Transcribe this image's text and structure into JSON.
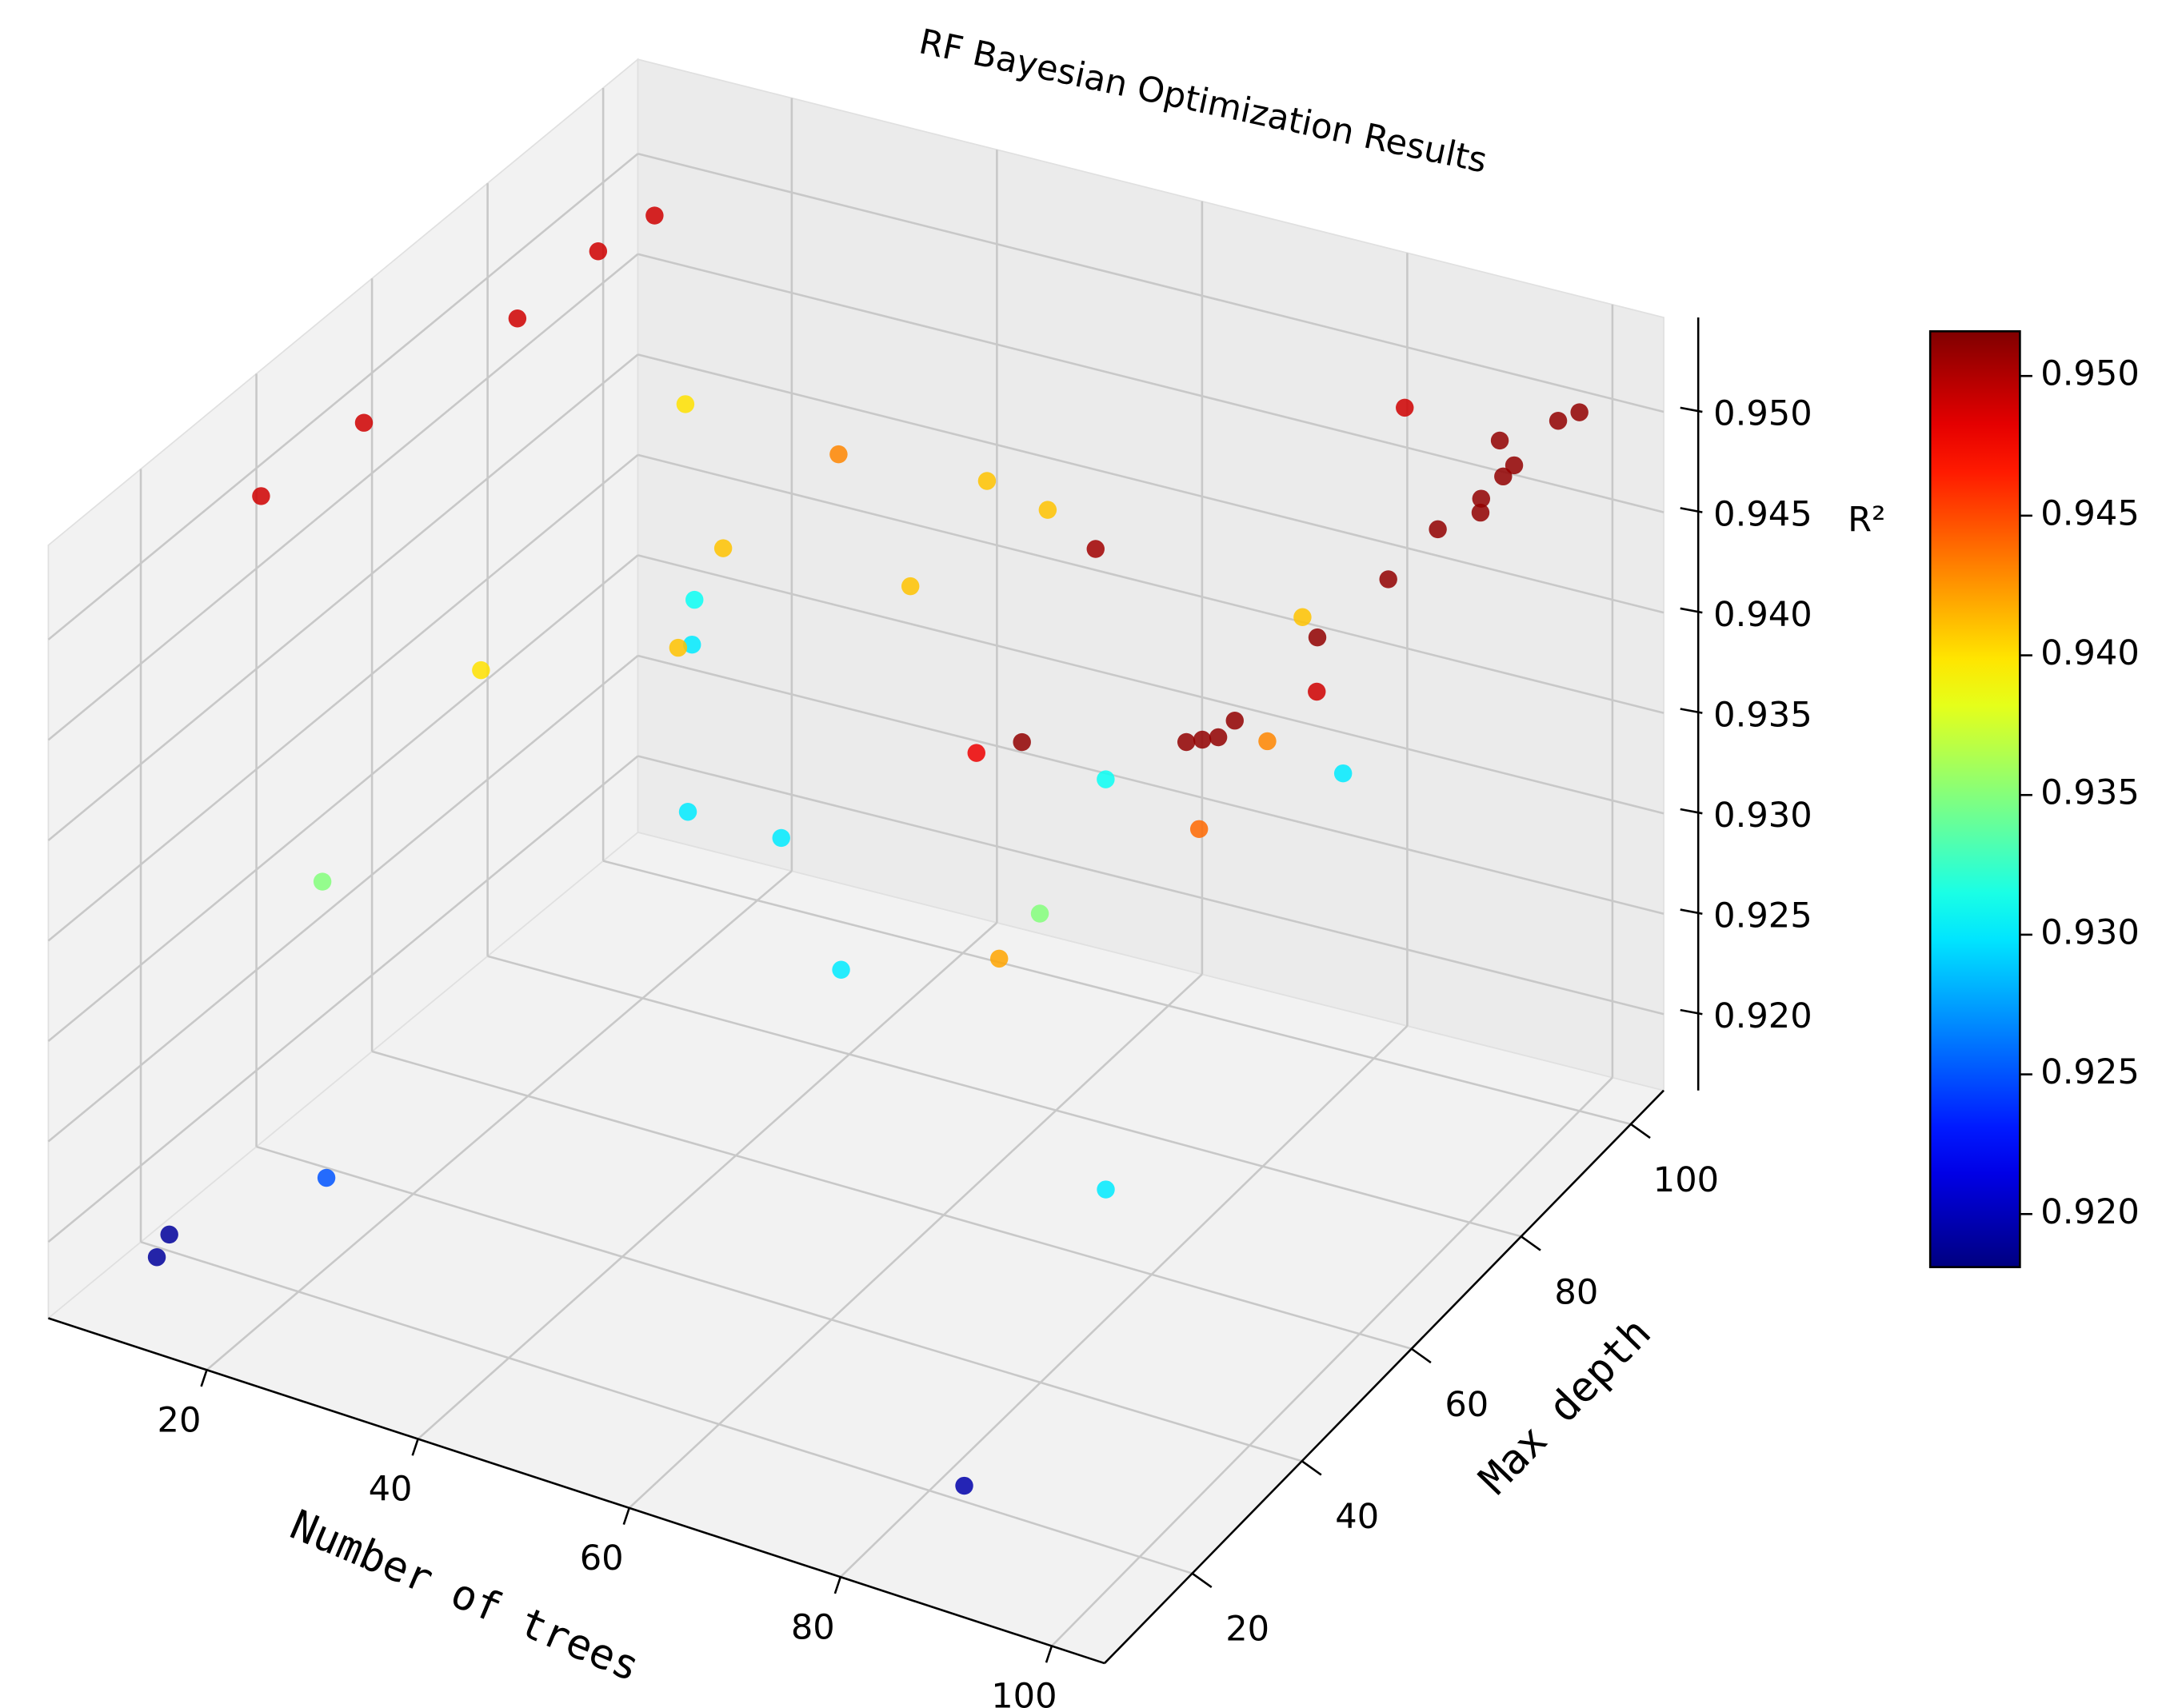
{
  "chart_data": {
    "type": "scatter3d",
    "title": "RF Bayesian Optimization Results",
    "xlabel": "Number of trees",
    "ylabel": "Max depth",
    "zlabel": "R²",
    "x": [
      10,
      9,
      9,
      7,
      6,
      13,
      34,
      44,
      51,
      30,
      15,
      17,
      35,
      47,
      73,
      21,
      19,
      31,
      40,
      55,
      73,
      84,
      76,
      83,
      61,
      92,
      95,
      96,
      97,
      97,
      89,
      98,
      97,
      79,
      77,
      98,
      98,
      99,
      100,
      99,
      99,
      96,
      83,
      99,
      100,
      27,
      11,
      12,
      91,
      87
    ],
    "y": [
      100,
      92,
      78,
      55,
      39,
      100,
      89,
      97,
      95,
      76,
      98,
      94,
      59,
      78,
      63,
      50,
      26,
      68,
      68,
      51,
      53,
      25,
      36,
      31,
      87,
      46,
      38,
      39,
      40,
      43,
      64,
      56,
      58,
      89,
      100,
      69,
      78,
      84,
      82,
      88,
      90,
      93,
      100,
      98,
      100,
      12,
      14,
      10,
      31,
      13
    ],
    "z": [
      0.949,
      0.949,
      0.949,
      0.949,
      0.949,
      0.94,
      0.943,
      0.941,
      0.941,
      0.941,
      0.931,
      0.93,
      0.941,
      0.941,
      0.9505,
      0.94,
      0.935,
      0.93,
      0.93,
      0.93,
      0.935,
      0.942,
      0.948,
      0.951,
      0.931,
      0.944,
      0.951,
      0.951,
      0.951,
      0.951,
      0.943,
      0.949,
      0.951,
      0.941,
      0.93,
      0.951,
      0.951,
      0.951,
      0.951,
      0.951,
      0.951,
      0.951,
      0.949,
      0.951,
      0.951,
      0.925,
      0.919,
      0.919,
      0.93,
      0.9195
    ],
    "xlim": [
      5,
      105
    ],
    "ylim": [
      4,
      106
    ],
    "zlim": [
      0.9162,
      0.9547
    ],
    "xticks": [
      20,
      40,
      60,
      80,
      100
    ],
    "yticks": [
      20,
      40,
      60,
      80,
      100
    ],
    "zticks": [
      {
        "value": 0.92,
        "label": "0.920"
      },
      {
        "value": 0.925,
        "label": "0.925"
      },
      {
        "value": 0.93,
        "label": "0.930"
      },
      {
        "value": 0.935,
        "label": "0.935"
      },
      {
        "value": 0.94,
        "label": "0.940"
      },
      {
        "value": 0.945,
        "label": "0.945"
      },
      {
        "value": 0.95,
        "label": "0.950"
      }
    ],
    "grid": true,
    "colorbar": {
      "cmap": "jet",
      "clim": [
        0.9181,
        0.9516
      ],
      "ticks": [
        {
          "value": 0.92,
          "label": "0.920"
        },
        {
          "value": 0.925,
          "label": "0.925"
        },
        {
          "value": 0.93,
          "label": "0.930"
        },
        {
          "value": 0.935,
          "label": "0.935"
        },
        {
          "value": 0.94,
          "label": "0.940"
        },
        {
          "value": 0.945,
          "label": "0.945"
        },
        {
          "value": 0.95,
          "label": "0.950"
        }
      ]
    }
  }
}
